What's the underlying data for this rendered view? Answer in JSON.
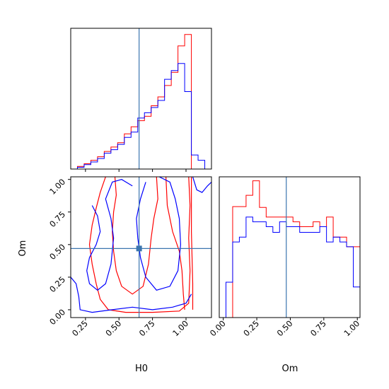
{
  "chart_data": {
    "type": "corner",
    "params": [
      "H0",
      "Om"
    ],
    "truth": {
      "H0": 0.65,
      "Om": 0.47
    },
    "colors": {
      "series_a": "#ff0000",
      "series_b": "#0000ff",
      "truth": "#3b75af"
    },
    "panels": [
      {
        "id": "hist_H0",
        "type": "histogram",
        "param": "H0",
        "xlim": [
          0.14,
          1.19
        ],
        "bin_edges": [
          0.14,
          0.19,
          0.24,
          0.29,
          0.34,
          0.39,
          0.44,
          0.49,
          0.54,
          0.59,
          0.64,
          0.69,
          0.74,
          0.79,
          0.84,
          0.89,
          0.94,
          0.99,
          1.04,
          1.09,
          1.14,
          1.19
        ],
        "series": [
          {
            "color": "#ff0000",
            "counts": [
              0,
              3,
              6,
              10,
              14,
              20,
              25,
              30,
              40,
              48,
              55,
              60,
              72,
              82,
              95,
              110,
              140,
              153,
              0,
              0,
              0
            ]
          },
          {
            "color": "#0000ff",
            "counts": [
              0,
              2,
              5,
              8,
              12,
              18,
              22,
              28,
              36,
              42,
              58,
              64,
              70,
              78,
              102,
              112,
              120,
              88,
              16,
              10,
              0
            ]
          }
        ],
        "ymax": 160
      },
      {
        "id": "hist_Om",
        "type": "histogram",
        "param": "Om",
        "xlim": [
          -0.03,
          1.02
        ],
        "xticks": [
          "0.00",
          "0.25",
          "0.50",
          "0.75",
          "1.00"
        ],
        "xtick_values": [
          0,
          0.25,
          0.5,
          0.75,
          1.0
        ],
        "xlabel": "Om",
        "bin_edges": [
          -0.03,
          0.02,
          0.07,
          0.12,
          0.17,
          0.22,
          0.27,
          0.32,
          0.37,
          0.42,
          0.47,
          0.52,
          0.57,
          0.62,
          0.67,
          0.72,
          0.77,
          0.82,
          0.87,
          0.92,
          0.97,
          1.02
        ],
        "series": [
          {
            "color": "#ff0000",
            "counts": [
              0,
              0,
              138,
              138,
              152,
              170,
              137,
              125,
              125,
              125,
              125,
              119,
              113,
              113,
              119,
              113,
              125,
              100,
              100,
              88,
              88
            ]
          },
          {
            "color": "#0000ff",
            "counts": [
              0,
              44,
              94,
              100,
              125,
              119,
              119,
              113,
              106,
              119,
              113,
              113,
              106,
              106,
              106,
              113,
              94,
              100,
              94,
              88,
              38
            ]
          }
        ],
        "ymax": 175
      },
      {
        "id": "contour_H0_Om",
        "type": "contour",
        "xparam": "H0",
        "yparam": "Om",
        "xlim": [
          0.14,
          1.19
        ],
        "ylim": [
          -0.06,
          1.02
        ],
        "xticks": [
          "0.25",
          "0.50",
          "0.75",
          "1.00"
        ],
        "xtick_values": [
          0.25,
          0.5,
          0.75,
          1.0
        ],
        "yticks": [
          "0.00",
          "0.25",
          "0.50",
          "0.75",
          "1.00"
        ],
        "ytick_values": [
          0,
          0.25,
          0.5,
          0.75,
          1.0
        ],
        "xlabel": "H0",
        "ylabel": "Om",
        "series": [
          {
            "color": "#ff0000",
            "contours": [
              [
                [
                  0.4,
                  1.02
                ],
                [
                  0.36,
                  0.9
                ],
                [
                  0.33,
                  0.78
                ],
                [
                  0.3,
                  0.65
                ],
                [
                  0.28,
                  0.5
                ],
                [
                  0.3,
                  0.35
                ],
                [
                  0.33,
                  0.2
                ],
                [
                  0.36,
                  0.08
                ],
                [
                  0.42,
                  0.0
                ],
                [
                  0.55,
                  -0.02
                ],
                [
                  0.75,
                  -0.02
                ],
                [
                  0.95,
                  -0.01
                ],
                [
                  1.02,
                  0.05
                ],
                [
                  1.03,
                  0.3
                ],
                [
                  1.02,
                  0.55
                ],
                [
                  1.03,
                  0.8
                ],
                [
                  1.02,
                  1.02
                ]
              ],
              [
                [
                  0.47,
                  1.02
                ],
                [
                  0.48,
                  0.88
                ],
                [
                  0.46,
                  0.75
                ],
                [
                  0.45,
                  0.6
                ],
                [
                  0.46,
                  0.45
                ],
                [
                  0.48,
                  0.3
                ],
                [
                  0.52,
                  0.18
                ],
                [
                  0.6,
                  0.12
                ],
                [
                  0.68,
                  0.18
                ],
                [
                  0.72,
                  0.35
                ],
                [
                  0.74,
                  0.55
                ],
                [
                  0.76,
                  0.7
                ],
                [
                  0.79,
                  0.85
                ],
                [
                  0.78,
                  1.02
                ]
              ],
              [
                [
                  0.85,
                  1.02
                ],
                [
                  0.86,
                  0.8
                ],
                [
                  0.9,
                  0.6
                ],
                [
                  0.95,
                  0.45
                ],
                [
                  0.97,
                  0.3
                ],
                [
                  0.98,
                  0.12
                ],
                [
                  0.99,
                  0.0
                ]
              ],
              [
                [
                  1.04,
                  1.02
                ],
                [
                  1.04,
                  0.6
                ],
                [
                  1.05,
                  0.2
                ],
                [
                  1.05,
                  0.0
                ]
              ]
            ]
          },
          {
            "color": "#0000ff",
            "contours": [
              [
                [
                  0.14,
                  0.25
                ],
                [
                  0.18,
                  0.2
                ],
                [
                  0.2,
                  0.1
                ],
                [
                  0.21,
                  0.0
                ],
                [
                  0.3,
                  -0.02
                ],
                [
                  0.45,
                  0.0
                ],
                [
                  0.6,
                  0.02
                ],
                [
                  0.75,
                  0.0
                ],
                [
                  0.9,
                  0.02
                ],
                [
                  1.0,
                  0.05
                ],
                [
                  1.04,
                  0.12
                ]
              ],
              [
                [
                  0.3,
                  0.8
                ],
                [
                  0.34,
                  0.72
                ],
                [
                  0.36,
                  0.6
                ],
                [
                  0.33,
                  0.5
                ],
                [
                  0.28,
                  0.4
                ],
                [
                  0.26,
                  0.3
                ],
                [
                  0.28,
                  0.2
                ],
                [
                  0.34,
                  0.15
                ],
                [
                  0.4,
                  0.2
                ],
                [
                  0.44,
                  0.35
                ],
                [
                  0.46,
                  0.55
                ],
                [
                  0.44,
                  0.7
                ],
                [
                  0.4,
                  0.85
                ],
                [
                  0.45,
                  0.98
                ],
                [
                  0.52,
                  1.0
                ],
                [
                  0.6,
                  0.95
                ]
              ],
              [
                [
                  0.7,
                  0.98
                ],
                [
                  0.66,
                  0.85
                ],
                [
                  0.63,
                  0.7
                ],
                [
                  0.64,
                  0.55
                ],
                [
                  0.66,
                  0.4
                ],
                [
                  0.7,
                  0.25
                ],
                [
                  0.78,
                  0.15
                ],
                [
                  0.88,
                  0.18
                ],
                [
                  0.94,
                  0.3
                ],
                [
                  0.96,
                  0.5
                ],
                [
                  0.95,
                  0.7
                ],
                [
                  0.92,
                  0.85
                ],
                [
                  0.88,
                  0.98
                ],
                [
                  0.8,
                  1.02
                ]
              ],
              [
                [
                  1.05,
                  1.02
                ],
                [
                  1.08,
                  0.92
                ],
                [
                  1.12,
                  0.9
                ],
                [
                  1.16,
                  0.95
                ],
                [
                  1.19,
                  0.98
                ]
              ]
            ]
          }
        ]
      }
    ]
  }
}
